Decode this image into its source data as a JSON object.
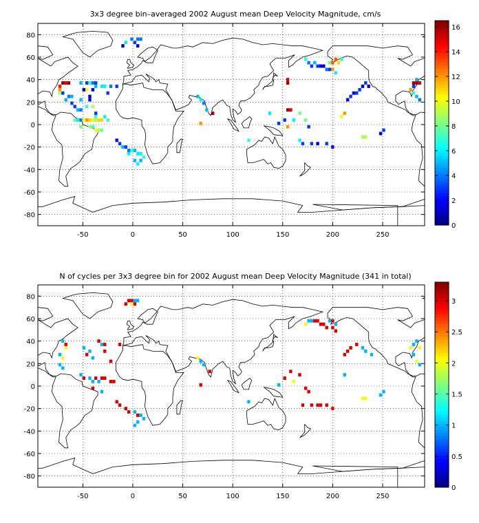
{
  "chart_data": [
    {
      "type": "heatmap",
      "title": "3x3 degree bin–averaged 2002 August mean Deep Velocity Magnitude, cm/s",
      "xlabel": "",
      "ylabel": "",
      "xlim": [
        -95,
        292
      ],
      "ylim": [
        -90,
        90
      ],
      "xticks": [
        -50,
        0,
        50,
        100,
        150,
        200,
        250
      ],
      "yticks": [
        80,
        60,
        40,
        20,
        0,
        -20,
        -40,
        -60,
        -80
      ],
      "grid": true,
      "colorbar": {
        "range": [
          0,
          16.5
        ],
        "ticks": [
          0,
          2,
          4,
          6,
          8,
          10,
          12,
          14,
          16
        ],
        "colormap": "jet"
      },
      "cells": [
        [
          -1,
          76,
          4
        ],
        [
          5,
          76,
          4
        ],
        [
          8,
          76,
          4
        ],
        [
          -7,
          73,
          6
        ],
        [
          2,
          73,
          3
        ],
        [
          -10,
          70,
          1
        ],
        [
          5,
          70,
          2
        ],
        [
          -70,
          37,
          16
        ],
        [
          -67,
          37,
          15
        ],
        [
          -64,
          37,
          16
        ],
        [
          -73,
          34,
          14
        ],
        [
          -52,
          37,
          5
        ],
        [
          -46,
          37,
          3
        ],
        [
          -43,
          37,
          7
        ],
        [
          -40,
          37,
          4
        ],
        [
          -37,
          37,
          3
        ],
        [
          -37,
          34,
          5
        ],
        [
          -31,
          34,
          6
        ],
        [
          -28,
          34,
          6
        ],
        [
          -22,
          34,
          4
        ],
        [
          -16,
          34,
          3
        ],
        [
          -25,
          28,
          3
        ],
        [
          -49,
          31,
          1
        ],
        [
          -46,
          31,
          10
        ],
        [
          -40,
          31,
          2
        ],
        [
          -43,
          25,
          1
        ],
        [
          -61,
          25,
          5
        ],
        [
          -73,
          31,
          12
        ],
        [
          -73,
          28,
          9
        ],
        [
          -70,
          28,
          3
        ],
        [
          -67,
          22,
          5
        ],
        [
          -64,
          25,
          4
        ],
        [
          -43,
          22,
          2
        ],
        [
          -52,
          22,
          5
        ],
        [
          -61,
          19,
          3
        ],
        [
          -58,
          16,
          3
        ],
        [
          -55,
          13,
          5
        ],
        [
          -52,
          13,
          4
        ],
        [
          -46,
          16,
          7
        ],
        [
          -40,
          16,
          9
        ],
        [
          -37,
          10,
          3
        ],
        [
          -58,
          4,
          8
        ],
        [
          -55,
          4,
          6
        ],
        [
          -52,
          4,
          4
        ],
        [
          -49,
          4,
          10
        ],
        [
          -46,
          4,
          12
        ],
        [
          -43,
          4,
          11
        ],
        [
          -40,
          4,
          10
        ],
        [
          -37,
          4,
          9
        ],
        [
          -34,
          4,
          11
        ],
        [
          -31,
          4,
          11
        ],
        [
          -37,
          7,
          7
        ],
        [
          -28,
          7,
          6
        ],
        [
          -25,
          4,
          7
        ],
        [
          -52,
          -2,
          8
        ],
        [
          -43,
          -2,
          9
        ],
        [
          -40,
          -2,
          7
        ],
        [
          -37,
          -5,
          10
        ],
        [
          -34,
          -5,
          9
        ],
        [
          -31,
          -5,
          8
        ],
        [
          -16,
          -14,
          2
        ],
        [
          -13,
          -17,
          3
        ],
        [
          -10,
          -20,
          5
        ],
        [
          -7,
          -20,
          3
        ],
        [
          -4,
          -23,
          4
        ],
        [
          -1,
          -23,
          7
        ],
        [
          2,
          -23,
          5
        ],
        [
          5,
          -26,
          6
        ],
        [
          8,
          -26,
          6
        ],
        [
          11,
          -29,
          7
        ],
        [
          8,
          -32,
          5
        ],
        [
          5,
          -35,
          6
        ],
        [
          2,
          -32,
          5
        ],
        [
          -4,
          -26,
          6
        ],
        [
          65,
          25,
          5
        ],
        [
          68,
          22,
          6
        ],
        [
          71,
          19,
          4
        ],
        [
          74,
          13,
          5
        ],
        [
          68,
          1,
          12
        ],
        [
          80,
          10,
          16
        ],
        [
          116,
          -14,
          7
        ],
        [
          137,
          10,
          6
        ],
        [
          155,
          13,
          16
        ],
        [
          158,
          13,
          15
        ],
        [
          167,
          10,
          8
        ],
        [
          173,
          4,
          8
        ],
        [
          161,
          4,
          6
        ],
        [
          152,
          4,
          3
        ],
        [
          146,
          1,
          3
        ],
        [
          155,
          -2,
          12
        ],
        [
          176,
          -2,
          3
        ],
        [
          167,
          -14,
          6
        ],
        [
          170,
          -17,
          3
        ],
        [
          179,
          -17,
          3
        ],
        [
          185,
          -17,
          1
        ],
        [
          194,
          -17,
          3
        ],
        [
          200,
          -20,
          2
        ],
        [
          212,
          10,
          12
        ],
        [
          209,
          7,
          10
        ],
        [
          230,
          -11,
          9
        ],
        [
          233,
          -11,
          9
        ],
        [
          248,
          -8,
          2
        ],
        [
          251,
          -5,
          3
        ],
        [
          173,
          58,
          7
        ],
        [
          176,
          55,
          4
        ],
        [
          182,
          55,
          5
        ],
        [
          179,
          52,
          3
        ],
        [
          185,
          52,
          3
        ],
        [
          188,
          52,
          2
        ],
        [
          191,
          52,
          1
        ],
        [
          194,
          49,
          4
        ],
        [
          197,
          55,
          8
        ],
        [
          200,
          55,
          13
        ],
        [
          203,
          58,
          13
        ],
        [
          206,
          55,
          11
        ],
        [
          209,
          58,
          7
        ],
        [
          197,
          49,
          3
        ],
        [
          200,
          49,
          12
        ],
        [
          203,
          46,
          6
        ],
        [
          155,
          40,
          15
        ],
        [
          155,
          37,
          16
        ],
        [
          215,
          22,
          2
        ],
        [
          218,
          25,
          3
        ],
        [
          221,
          28,
          2
        ],
        [
          224,
          28,
          3
        ],
        [
          227,
          31,
          3
        ],
        [
          230,
          34,
          2
        ],
        [
          233,
          37,
          3
        ],
        [
          236,
          34,
          2
        ],
        [
          281,
          37,
          16
        ],
        [
          284,
          37,
          16
        ],
        [
          287,
          37,
          15
        ],
        [
          278,
          31,
          12
        ],
        [
          281,
          28,
          7
        ],
        [
          284,
          25,
          5
        ],
        [
          287,
          22,
          4
        ],
        [
          281,
          34,
          3
        ],
        [
          284,
          40,
          5
        ]
      ]
    },
    {
      "type": "heatmap",
      "title": "N of cycles per 3x3 degree bin for 2002 August mean Deep Velocity Magnitude (341 in total)",
      "xlabel": "",
      "ylabel": "",
      "xlim": [
        -95,
        292
      ],
      "ylim": [
        -90,
        90
      ],
      "xticks": [
        -50,
        0,
        50,
        100,
        150,
        200,
        250
      ],
      "yticks": [
        80,
        60,
        40,
        20,
        0,
        -20,
        -40,
        -60,
        -80
      ],
      "grid": true,
      "colorbar": {
        "range": [
          0,
          3.3
        ],
        "ticks": [
          0,
          0.5,
          1,
          1.5,
          2,
          2.5,
          3
        ],
        "colormap": "jet"
      },
      "cells": [
        [
          -4,
          76,
          3
        ],
        [
          -1,
          76,
          3
        ],
        [
          2,
          76,
          1
        ],
        [
          5,
          76,
          1
        ],
        [
          -7,
          73,
          3
        ],
        [
          -1,
          73,
          2
        ],
        [
          2,
          73,
          3
        ],
        [
          -70,
          40,
          1
        ],
        [
          -67,
          37,
          3
        ],
        [
          -67,
          34,
          2
        ],
        [
          -73,
          28,
          1
        ],
        [
          -70,
          25,
          2
        ],
        [
          -73,
          19,
          1
        ],
        [
          -70,
          16,
          1
        ],
        [
          -49,
          34,
          1
        ],
        [
          -46,
          28,
          3
        ],
        [
          -43,
          31,
          1
        ],
        [
          -40,
          25,
          1
        ],
        [
          -34,
          40,
          3
        ],
        [
          -31,
          37,
          1
        ],
        [
          -28,
          37,
          3
        ],
        [
          -28,
          31,
          3
        ],
        [
          -22,
          22,
          3
        ],
        [
          -13,
          37,
          3
        ],
        [
          -52,
          10,
          1
        ],
        [
          -49,
          7,
          3
        ],
        [
          -43,
          7,
          1
        ],
        [
          -40,
          4,
          1
        ],
        [
          -37,
          7,
          3
        ],
        [
          -34,
          4,
          1
        ],
        [
          -31,
          7,
          3
        ],
        [
          -28,
          7,
          3
        ],
        [
          -22,
          4,
          3
        ],
        [
          -19,
          4,
          3
        ],
        [
          -40,
          -2,
          3
        ],
        [
          -31,
          -5,
          1
        ],
        [
          -16,
          -14,
          3
        ],
        [
          -13,
          -17,
          3
        ],
        [
          -7,
          -20,
          3
        ],
        [
          -4,
          -23,
          3
        ],
        [
          2,
          -23,
          1
        ],
        [
          5,
          -26,
          3
        ],
        [
          8,
          -26,
          1
        ],
        [
          11,
          -29,
          1
        ],
        [
          5,
          -32,
          1
        ],
        [
          2,
          -35,
          1
        ],
        [
          65,
          25,
          2
        ],
        [
          68,
          22,
          1
        ],
        [
          71,
          19,
          1
        ],
        [
          77,
          13,
          3
        ],
        [
          68,
          1,
          3
        ],
        [
          146,
          1,
          1
        ],
        [
          152,
          7,
          3
        ],
        [
          158,
          13,
          3
        ],
        [
          167,
          10,
          3
        ],
        [
          161,
          4,
          2
        ],
        [
          173,
          -2,
          3
        ],
        [
          176,
          -5,
          3
        ],
        [
          170,
          -17,
          3
        ],
        [
          179,
          -17,
          3
        ],
        [
          185,
          -17,
          3
        ],
        [
          188,
          -17,
          3
        ],
        [
          194,
          -17,
          3
        ],
        [
          200,
          -20,
          3
        ],
        [
          212,
          10,
          1
        ],
        [
          230,
          -11,
          2
        ],
        [
          233,
          -11,
          2
        ],
        [
          248,
          -8,
          1
        ],
        [
          251,
          -5,
          1
        ],
        [
          116,
          -14,
          1
        ],
        [
          173,
          55,
          2
        ],
        [
          176,
          58,
          1
        ],
        [
          179,
          58,
          1
        ],
        [
          182,
          58,
          3
        ],
        [
          185,
          58,
          3
        ],
        [
          188,
          55,
          3
        ],
        [
          191,
          55,
          3
        ],
        [
          197,
          58,
          1
        ],
        [
          200,
          58,
          3
        ],
        [
          203,
          55,
          1
        ],
        [
          194,
          52,
          3
        ],
        [
          200,
          52,
          3
        ],
        [
          203,
          49,
          3
        ],
        [
          212,
          28,
          3
        ],
        [
          215,
          31,
          3
        ],
        [
          218,
          34,
          3
        ],
        [
          224,
          37,
          3
        ],
        [
          230,
          34,
          1
        ],
        [
          233,
          31,
          1
        ],
        [
          239,
          28,
          1
        ],
        [
          278,
          34,
          2
        ],
        [
          281,
          37,
          1
        ],
        [
          284,
          40,
          1
        ],
        [
          287,
          34,
          2
        ],
        [
          281,
          28,
          1
        ],
        [
          284,
          22,
          2
        ],
        [
          287,
          19,
          1
        ]
      ]
    }
  ]
}
